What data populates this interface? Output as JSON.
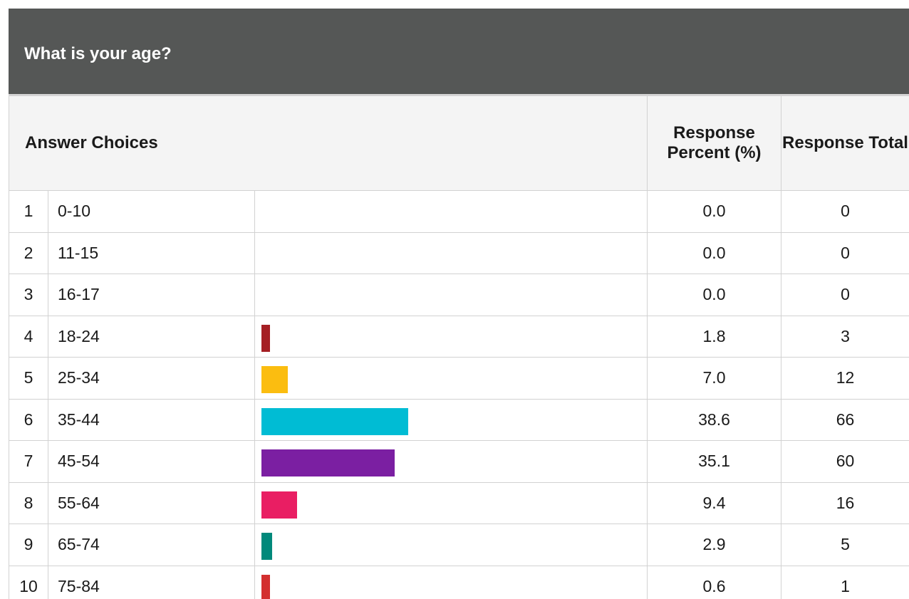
{
  "question": {
    "title": "What is your age?"
  },
  "table_header": {
    "answer_choices": "Answer Choices",
    "response_percent": "Response Percent (%)",
    "response_total": "Response Total"
  },
  "rows": [
    {
      "num": "1",
      "label": "0-10",
      "percent": "0.0",
      "total": "0",
      "color": ""
    },
    {
      "num": "2",
      "label": "11-15",
      "percent": "0.0",
      "total": "0",
      "color": ""
    },
    {
      "num": "3",
      "label": "16-17",
      "percent": "0.0",
      "total": "0",
      "color": ""
    },
    {
      "num": "4",
      "label": "18-24",
      "percent": "1.8",
      "total": "3",
      "color": "#a51f24"
    },
    {
      "num": "5",
      "label": "25-34",
      "percent": "7.0",
      "total": "12",
      "color": "#fbbd10"
    },
    {
      "num": "6",
      "label": "35-44",
      "percent": "38.6",
      "total": "66",
      "color": "#00bcd4"
    },
    {
      "num": "7",
      "label": "45-54",
      "percent": "35.1",
      "total": "60",
      "color": "#7b1fa2"
    },
    {
      "num": "8",
      "label": "55-64",
      "percent": "9.4",
      "total": "16",
      "color": "#e91e63"
    },
    {
      "num": "9",
      "label": "65-74",
      "percent": "2.9",
      "total": "5",
      "color": "#00897b"
    },
    {
      "num": "10",
      "label": "75-84",
      "percent": "0.6",
      "total": "1",
      "color": "#d32f2f"
    }
  ],
  "chart_data": {
    "type": "bar",
    "orientation": "horizontal",
    "title": "What is your age?",
    "categories": [
      "0-10",
      "11-15",
      "16-17",
      "18-24",
      "25-34",
      "35-44",
      "45-54",
      "55-64",
      "65-74",
      "75-84"
    ],
    "series": [
      {
        "name": "Response Percent (%)",
        "values": [
          0.0,
          0.0,
          0.0,
          1.8,
          7.0,
          38.6,
          35.1,
          9.4,
          2.9,
          0.6
        ]
      },
      {
        "name": "Response Total",
        "values": [
          0,
          0,
          0,
          3,
          12,
          66,
          60,
          16,
          5,
          1
        ]
      }
    ],
    "colors": [
      "",
      "",
      "",
      "#a51f24",
      "#fbbd10",
      "#00bcd4",
      "#7b1fa2",
      "#e91e63",
      "#00897b",
      "#d32f2f"
    ],
    "grid": false
  }
}
